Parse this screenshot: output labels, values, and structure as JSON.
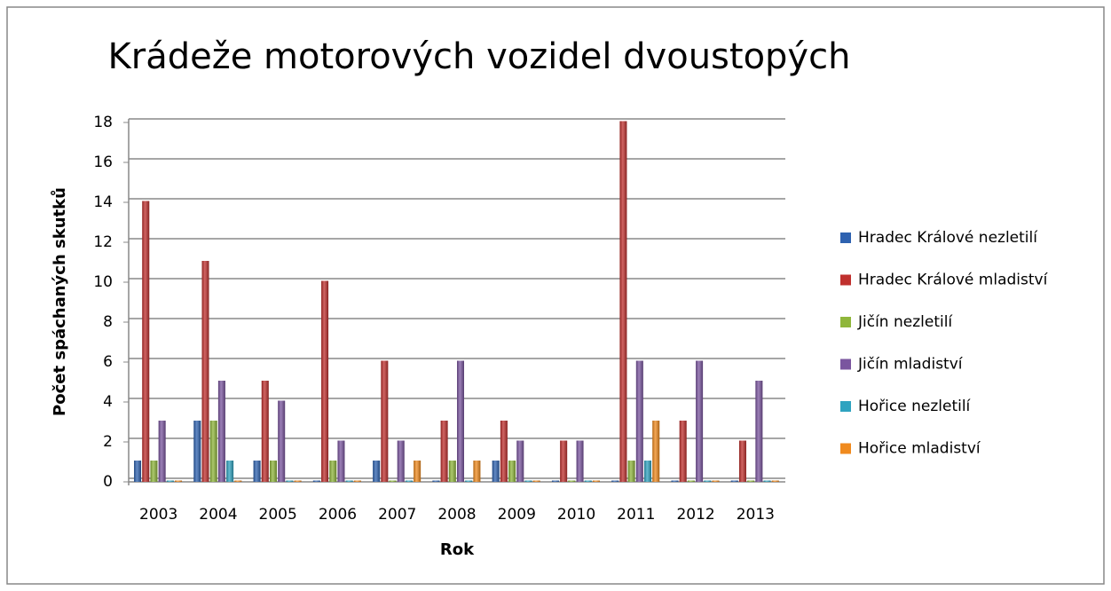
{
  "chart_data": {
    "type": "bar",
    "title": "Krádeže motorových vozidel dvoustopých",
    "x_label": "Rok",
    "y_label": "Počet spáchaných skutků",
    "categories": [
      "2003",
      "2004",
      "2005",
      "2006",
      "2007",
      "2008",
      "2009",
      "2010",
      "2011",
      "2012",
      "2013"
    ],
    "series": [
      {
        "name": "Hradec Králové nezletilí",
        "color": "#2e62b0",
        "values": [
          1,
          3,
          1,
          0,
          1,
          0,
          1,
          0,
          0,
          0,
          0
        ]
      },
      {
        "name": "Hradec Králové mladiství",
        "color": "#c0302e",
        "values": [
          14,
          11,
          5,
          10,
          6,
          3,
          3,
          2,
          18,
          3,
          2
        ]
      },
      {
        "name": "Jičín nezletilí",
        "color": "#8fb63b",
        "values": [
          1,
          3,
          1,
          1,
          0,
          1,
          1,
          0,
          1,
          0,
          0
        ]
      },
      {
        "name": "Jičín mladiství",
        "color": "#7a559f",
        "values": [
          3,
          5,
          4,
          2,
          2,
          6,
          2,
          2,
          6,
          6,
          5
        ]
      },
      {
        "name": "Hořice nezletilí",
        "color": "#2fa3c0",
        "values": [
          0,
          1,
          0,
          0,
          0,
          0,
          0,
          0,
          1,
          0,
          0
        ]
      },
      {
        "name": "Hořice mladiství",
        "color": "#f08a1e",
        "values": [
          0,
          0,
          0,
          0,
          1,
          1,
          0,
          0,
          3,
          0,
          0
        ]
      }
    ],
    "ylim": [
      0,
      18
    ],
    "yticks": [
      0,
      2,
      4,
      6,
      8,
      10,
      12,
      14,
      16,
      18
    ],
    "grid": true,
    "legend": "right"
  }
}
